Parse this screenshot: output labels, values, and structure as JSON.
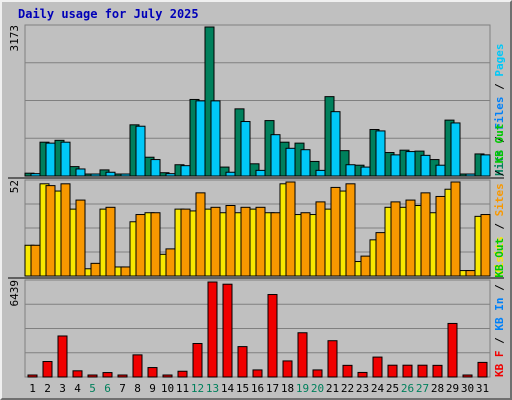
{
  "title": "Daily usage for July 2025",
  "colors": {
    "hits": "#00805c",
    "files": "#00c8f8",
    "sites": "#f89800",
    "visits": "#f8e800",
    "kbin": "#0080f8",
    "kbout": "#00c800",
    "kbf": "#f00000",
    "weekend_tick": "#00805c",
    "tick": "#000000",
    "separator": "#000000"
  },
  "chart_data": [
    {
      "type": "bar",
      "panel": "hits-files",
      "max_label": "3173",
      "ylim": [
        0,
        3173
      ],
      "categories": [
        "1",
        "2",
        "3",
        "4",
        "5",
        "6",
        "7",
        "8",
        "9",
        "10",
        "11",
        "12",
        "13",
        "14",
        "15",
        "16",
        "17",
        "18",
        "19",
        "20",
        "21",
        "22",
        "23",
        "24",
        "25",
        "26",
        "27",
        "28",
        "29",
        "30",
        "31"
      ],
      "series": [
        {
          "name": "Hits",
          "color": "#00805c",
          "values": [
            60,
            720,
            760,
            200,
            40,
            130,
            40,
            1090,
            400,
            70,
            240,
            1630,
            3173,
            190,
            1430,
            260,
            1180,
            720,
            700,
            310,
            1690,
            540,
            230,
            990,
            500,
            550,
            530,
            350,
            1190,
            40,
            470
          ]
        },
        {
          "name": "Files",
          "color": "#00c8f8",
          "values": [
            50,
            700,
            720,
            150,
            20,
            80,
            20,
            1060,
            350,
            50,
            220,
            1600,
            1600,
            80,
            1160,
            120,
            880,
            590,
            560,
            120,
            1370,
            240,
            190,
            960,
            450,
            520,
            440,
            230,
            1130,
            30,
            450
          ]
        }
      ],
      "legend": [
        {
          "text": "Hits",
          "color": "#00805c"
        },
        {
          "text": " / ",
          "color": "#000000"
        },
        {
          "text": "Files",
          "color": "#0080f8"
        },
        {
          "text": " / ",
          "color": "#000000"
        },
        {
          "text": "Pages",
          "color": "#00c8f8"
        }
      ]
    },
    {
      "type": "bar",
      "panel": "sites-visits",
      "max_label": "52",
      "ylim": [
        0,
        52
      ],
      "categories": [
        "1",
        "2",
        "3",
        "4",
        "5",
        "6",
        "7",
        "8",
        "9",
        "10",
        "11",
        "12",
        "13",
        "14",
        "15",
        "16",
        "17",
        "18",
        "19",
        "20",
        "21",
        "22",
        "23",
        "24",
        "25",
        "26",
        "27",
        "28",
        "29",
        "30",
        "31"
      ],
      "series": [
        {
          "name": "Visits",
          "color": "#f8e800",
          "values": [
            17,
            51,
            47,
            37,
            4,
            37,
            5,
            30,
            35,
            12,
            37,
            36,
            37,
            35,
            35,
            37,
            35,
            51,
            34,
            34,
            37,
            47,
            8,
            20,
            38,
            38,
            39,
            35,
            48,
            3,
            33
          ]
        },
        {
          "name": "Sites",
          "color": "#f89800",
          "values": [
            17,
            50,
            51,
            42,
            7,
            38,
            5,
            34,
            35,
            15,
            37,
            46,
            38,
            39,
            38,
            38,
            35,
            52,
            35,
            41,
            49,
            51,
            11,
            24,
            41,
            42,
            46,
            44,
            52,
            3,
            34
          ]
        }
      ],
      "legend": [
        {
          "text": "Visits",
          "color": "#f8e800"
        },
        {
          "text": " / ",
          "color": "#000000"
        },
        {
          "text": "Sites",
          "color": "#f89800"
        },
        {
          "text": " / ",
          "color": "#000000"
        },
        {
          "text": "KB Out",
          "color": "#00c800"
        }
      ]
    },
    {
      "type": "bar",
      "panel": "kbf",
      "max_label": "6439",
      "ylim": [
        0,
        6439
      ],
      "categories": [
        "1",
        "2",
        "3",
        "4",
        "5",
        "6",
        "7",
        "8",
        "9",
        "10",
        "11",
        "12",
        "13",
        "14",
        "15",
        "16",
        "17",
        "18",
        "19",
        "20",
        "21",
        "22",
        "23",
        "24",
        "25",
        "26",
        "27",
        "28",
        "29",
        "30",
        "31"
      ],
      "series": [
        {
          "name": "KB F",
          "color": "#f00000",
          "values": [
            80,
            1050,
            2780,
            420,
            80,
            300,
            80,
            1500,
            640,
            80,
            390,
            2270,
            6439,
            6290,
            2060,
            480,
            5590,
            1090,
            3000,
            480,
            2460,
            790,
            310,
            1350,
            800,
            800,
            800,
            790,
            3630,
            80,
            990
          ]
        }
      ],
      "legend": [
        {
          "text": "KB F",
          "color": "#f00000"
        },
        {
          "text": " / ",
          "color": "#000000"
        },
        {
          "text": "KB In",
          "color": "#0080f8"
        },
        {
          "text": " / ",
          "color": "#000000"
        },
        {
          "text": "KB Out",
          "color": "#00c800"
        }
      ]
    }
  ],
  "x_ticks": [
    {
      "label": "1",
      "weekend": false
    },
    {
      "label": "2",
      "weekend": false
    },
    {
      "label": "3",
      "weekend": false
    },
    {
      "label": "4",
      "weekend": false
    },
    {
      "label": "5",
      "weekend": true
    },
    {
      "label": "6",
      "weekend": true
    },
    {
      "label": "7",
      "weekend": false
    },
    {
      "label": "8",
      "weekend": false
    },
    {
      "label": "9",
      "weekend": false
    },
    {
      "label": "10",
      "weekend": false
    },
    {
      "label": "11",
      "weekend": false
    },
    {
      "label": "12",
      "weekend": true
    },
    {
      "label": "13",
      "weekend": true
    },
    {
      "label": "14",
      "weekend": false
    },
    {
      "label": "15",
      "weekend": false
    },
    {
      "label": "16",
      "weekend": false
    },
    {
      "label": "17",
      "weekend": false
    },
    {
      "label": "18",
      "weekend": false
    },
    {
      "label": "19",
      "weekend": true
    },
    {
      "label": "20",
      "weekend": true
    },
    {
      "label": "21",
      "weekend": false
    },
    {
      "label": "22",
      "weekend": false
    },
    {
      "label": "23",
      "weekend": false
    },
    {
      "label": "24",
      "weekend": false
    },
    {
      "label": "25",
      "weekend": false
    },
    {
      "label": "26",
      "weekend": true
    },
    {
      "label": "27",
      "weekend": true
    },
    {
      "label": "28",
      "weekend": false
    },
    {
      "label": "29",
      "weekend": false
    },
    {
      "label": "30",
      "weekend": false
    },
    {
      "label": "31",
      "weekend": false
    }
  ],
  "grid": true
}
